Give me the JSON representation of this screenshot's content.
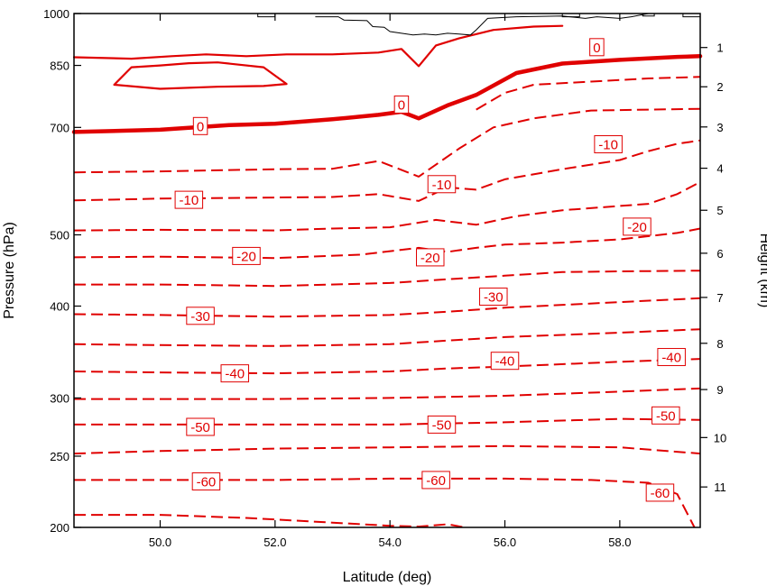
{
  "chart_data": {
    "type": "contour",
    "title": "",
    "xlabel": "Latitude (deg)",
    "ylabel_left": "Pressure (hPa)",
    "ylabel_right": "Height (km)",
    "xlim": [
      48.5,
      59.4
    ],
    "ylim_pressure": [
      1000,
      200
    ],
    "y_scale": "log-pressure",
    "x_ticks": [
      {
        "value": 50.0,
        "label": "50.0"
      },
      {
        "value": 52.0,
        "label": "52.0"
      },
      {
        "value": 54.0,
        "label": "54.0"
      },
      {
        "value": 56.0,
        "label": "56.0"
      },
      {
        "value": 58.0,
        "label": "58.0"
      }
    ],
    "y_ticks_left": [
      {
        "value": 200,
        "label": "200"
      },
      {
        "value": 250,
        "label": "250"
      },
      {
        "value": 300,
        "label": "300"
      },
      {
        "value": 400,
        "label": "400"
      },
      {
        "value": 500,
        "label": "500"
      },
      {
        "value": 700,
        "label": "700"
      },
      {
        "value": 850,
        "label": "850"
      },
      {
        "value": 1000,
        "label": "1000"
      }
    ],
    "y_ticks_right": [
      {
        "km": 1,
        "pressure": 899,
        "label": "1"
      },
      {
        "km": 2,
        "pressure": 795,
        "label": "2"
      },
      {
        "km": 3,
        "pressure": 701,
        "label": "3"
      },
      {
        "km": 4,
        "pressure": 616,
        "label": "4"
      },
      {
        "km": 5,
        "pressure": 540,
        "label": "5"
      },
      {
        "km": 6,
        "pressure": 472,
        "label": "6"
      },
      {
        "km": 7,
        "pressure": 411,
        "label": "7"
      },
      {
        "km": 8,
        "pressure": 356,
        "label": "8"
      },
      {
        "km": 9,
        "pressure": 308,
        "label": "9"
      },
      {
        "km": 10,
        "pressure": 265,
        "label": "10"
      },
      {
        "km": 11,
        "pressure": 227,
        "label": "11"
      }
    ],
    "contour_color": "#e00000",
    "terrain_color": "#000000",
    "contour_interval": 5,
    "negative_style": "dashed",
    "zero_style": "thick",
    "positive_style": "solid",
    "contours": [
      {
        "level": -65,
        "style": "dashed",
        "points": [
          [
            48.5,
            208
          ],
          [
            50,
            208
          ],
          [
            51.5,
            206
          ],
          [
            53,
            203
          ],
          [
            54,
            201
          ],
          [
            54.5,
            200.5
          ],
          [
            55,
            202
          ],
          [
            55.3,
            200
          ]
        ]
      },
      {
        "level": -60,
        "style": "dashed",
        "points": [
          [
            48.5,
            232
          ],
          [
            50,
            232
          ],
          [
            52,
            232
          ],
          [
            54,
            233
          ],
          [
            56,
            233
          ],
          [
            57.5,
            232
          ],
          [
            58.5,
            230
          ],
          [
            59,
            222
          ],
          [
            59.3,
            200
          ]
        ]
      },
      {
        "level": -55,
        "style": "dashed",
        "points": [
          [
            48.5,
            252
          ],
          [
            50,
            254
          ],
          [
            52,
            256
          ],
          [
            54,
            257
          ],
          [
            56,
            258
          ],
          [
            58,
            257
          ],
          [
            59.4,
            252
          ]
        ]
      },
      {
        "level": -50,
        "style": "dashed",
        "points": [
          [
            48.5,
            276
          ],
          [
            50,
            276
          ],
          [
            52,
            276
          ],
          [
            54,
            276
          ],
          [
            56,
            278
          ],
          [
            58,
            281
          ],
          [
            59.4,
            280
          ]
        ]
      },
      {
        "level": -45,
        "style": "dashed",
        "points": [
          [
            48.5,
            299
          ],
          [
            50,
            299
          ],
          [
            52,
            299
          ],
          [
            54,
            300
          ],
          [
            56,
            302
          ],
          [
            58,
            306
          ],
          [
            59.4,
            309
          ]
        ]
      },
      {
        "level": -40,
        "style": "dashed",
        "points": [
          [
            48.5,
            326
          ],
          [
            50,
            325
          ],
          [
            52,
            324
          ],
          [
            54,
            326
          ],
          [
            55,
            329
          ],
          [
            56,
            331
          ],
          [
            58,
            336
          ],
          [
            59.4,
            339
          ]
        ]
      },
      {
        "level": -35,
        "style": "dashed",
        "points": [
          [
            48.5,
            355
          ],
          [
            50,
            354
          ],
          [
            52,
            353
          ],
          [
            54,
            355
          ],
          [
            55,
            359
          ],
          [
            56,
            363
          ],
          [
            58,
            368
          ],
          [
            59.4,
            372
          ]
        ]
      },
      {
        "level": -30,
        "style": "dashed",
        "points": [
          [
            48.5,
            390
          ],
          [
            50,
            389
          ],
          [
            52,
            387
          ],
          [
            54,
            389
          ],
          [
            55,
            393
          ],
          [
            56,
            398
          ],
          [
            58,
            405
          ],
          [
            59.4,
            410
          ]
        ]
      },
      {
        "level": -25,
        "style": "dashed",
        "points": [
          [
            48.5,
            428
          ],
          [
            50,
            428
          ],
          [
            52,
            426
          ],
          [
            54,
            430
          ],
          [
            55,
            435
          ],
          [
            56,
            440
          ],
          [
            57,
            445
          ],
          [
            58,
            446
          ],
          [
            59.4,
            447
          ]
        ]
      },
      {
        "level": -20,
        "style": "dashed",
        "points": [
          [
            48.5,
            466
          ],
          [
            50,
            467
          ],
          [
            52,
            465
          ],
          [
            53.5,
            470
          ],
          [
            54.5,
            480
          ],
          [
            55,
            474
          ],
          [
            55.5,
            480
          ],
          [
            56,
            485
          ],
          [
            57,
            488
          ],
          [
            58,
            493
          ],
          [
            59,
            503
          ],
          [
            59.4,
            510
          ]
        ]
      },
      {
        "level": -15,
        "style": "dashed",
        "points": [
          [
            48.5,
            507
          ],
          [
            50,
            508
          ],
          [
            52,
            507
          ],
          [
            53,
            510
          ],
          [
            54,
            512
          ],
          [
            54.8,
            524
          ],
          [
            55.5,
            516
          ],
          [
            56.2,
            530
          ],
          [
            57,
            540
          ],
          [
            58.5,
            551
          ],
          [
            59,
            568
          ],
          [
            59.4,
            590
          ]
        ]
      },
      {
        "level": -10,
        "style": "dashed",
        "points": [
          [
            48.5,
            557
          ],
          [
            50,
            560
          ],
          [
            52,
            562
          ],
          [
            53,
            563
          ],
          [
            53.8,
            568
          ],
          [
            54.5,
            556
          ],
          [
            55,
            580
          ],
          [
            55.5,
            576
          ],
          [
            56,
            595
          ],
          [
            57,
            614
          ],
          [
            58,
            632
          ],
          [
            58.5,
            650
          ],
          [
            59,
            665
          ],
          [
            59.4,
            672
          ]
        ]
      },
      {
        "level": -5,
        "style": "dashed",
        "points": [
          [
            48.5,
            608
          ],
          [
            50,
            610
          ],
          [
            52,
            614
          ],
          [
            53,
            615
          ],
          [
            53.8,
            630
          ],
          [
            54.5,
            600
          ],
          [
            55.2,
            655
          ],
          [
            55.8,
            700
          ],
          [
            56.5,
            720
          ],
          [
            57.5,
            738
          ],
          [
            58.5,
            740
          ],
          [
            59.4,
            742
          ]
        ]
      },
      {
        "level": -2,
        "style": "dashed",
        "points": [
          [
            55.5,
            740
          ],
          [
            56,
            780
          ],
          [
            56.5,
            800
          ],
          [
            57.5,
            808
          ],
          [
            58.5,
            816
          ],
          [
            59.4,
            820
          ]
        ]
      },
      {
        "level": 0,
        "style": "thick",
        "points": [
          [
            48.5,
            690
          ],
          [
            50,
            695
          ],
          [
            51.2,
            705
          ],
          [
            52,
            708
          ],
          [
            53,
            718
          ],
          [
            53.8,
            728
          ],
          [
            54.2,
            735
          ],
          [
            54.5,
            720
          ],
          [
            55,
            750
          ],
          [
            55.5,
            775
          ],
          [
            56.2,
            830
          ],
          [
            57,
            855
          ],
          [
            58,
            865
          ],
          [
            59,
            873
          ],
          [
            59.4,
            875
          ]
        ]
      },
      {
        "level": 5,
        "style": "solid",
        "points": [
          [
            48.5,
            872
          ],
          [
            49.5,
            868
          ],
          [
            50.2,
            875
          ],
          [
            50.8,
            880
          ],
          [
            51.5,
            875
          ],
          [
            52.2,
            880
          ],
          [
            53,
            880
          ],
          [
            53.8,
            885
          ],
          [
            54.2,
            895
          ],
          [
            54.5,
            848
          ],
          [
            54.8,
            905
          ],
          [
            55.2,
            925
          ],
          [
            55.8,
            950
          ],
          [
            56.5,
            960
          ],
          [
            57,
            962
          ]
        ]
      },
      {
        "level": 5,
        "style": "solid",
        "points": [
          [
            49.2,
            800
          ],
          [
            50,
            790
          ],
          [
            51,
            795
          ],
          [
            51.8,
            797
          ],
          [
            52.2,
            802
          ],
          [
            51.8,
            845
          ],
          [
            51,
            858
          ],
          [
            50.5,
            856
          ],
          [
            50,
            850
          ],
          [
            49.5,
            845
          ],
          [
            49.2,
            800
          ]
        ]
      }
    ],
    "contour_labels": [
      {
        "text": "-60",
        "x": 50.8,
        "p": 231
      },
      {
        "text": "-60",
        "x": 54.8,
        "p": 232
      },
      {
        "text": "-60",
        "x": 58.7,
        "p": 223
      },
      {
        "text": "-50",
        "x": 50.7,
        "p": 274
      },
      {
        "text": "-50",
        "x": 54.9,
        "p": 276
      },
      {
        "text": "-50",
        "x": 58.8,
        "p": 284
      },
      {
        "text": "-40",
        "x": 51.3,
        "p": 324
      },
      {
        "text": "-40",
        "x": 56.0,
        "p": 337
      },
      {
        "text": "-40",
        "x": 58.9,
        "p": 341
      },
      {
        "text": "-30",
        "x": 50.7,
        "p": 388
      },
      {
        "text": "-30",
        "x": 55.8,
        "p": 412
      },
      {
        "text": "-20",
        "x": 51.5,
        "p": 468
      },
      {
        "text": "-20",
        "x": 54.7,
        "p": 466
      },
      {
        "text": "-20",
        "x": 58.3,
        "p": 513
      },
      {
        "text": "-10",
        "x": 50.5,
        "p": 558
      },
      {
        "text": "-10",
        "x": 54.9,
        "p": 586
      },
      {
        "text": "-10",
        "x": 57.8,
        "p": 664
      },
      {
        "text": "0",
        "x": 50.7,
        "p": 703
      },
      {
        "text": "0",
        "x": 54.2,
        "p": 752
      },
      {
        "text": "0",
        "x": 57.6,
        "p": 900
      }
    ],
    "terrain_outline": [
      [
        52.7,
        990
      ],
      [
        53.1,
        990
      ],
      [
        53.2,
        980
      ],
      [
        53.6,
        978
      ],
      [
        53.7,
        960
      ],
      [
        53.9,
        958
      ],
      [
        54.0,
        945
      ],
      [
        54.2,
        940
      ],
      [
        54.4,
        935
      ],
      [
        54.6,
        938
      ],
      [
        54.8,
        935
      ],
      [
        55.0,
        940
      ],
      [
        55.2,
        938
      ],
      [
        55.4,
        935
      ],
      [
        55.5,
        950
      ],
      [
        55.7,
        985
      ],
      [
        56.2,
        990
      ],
      [
        57.0,
        992
      ],
      [
        57.4,
        985
      ],
      [
        57.6,
        990
      ],
      [
        58.0,
        985
      ],
      [
        58.2,
        990
      ],
      [
        58.5,
        1000
      ]
    ],
    "terrain_pieces": [
      [
        [
          51.7,
          1000
        ],
        [
          51.7,
          990
        ],
        [
          52.0,
          990
        ],
        [
          52.0,
          1000
        ]
      ],
      [
        [
          57.0,
          1000
        ],
        [
          57.0,
          990
        ],
        [
          57.3,
          990
        ],
        [
          57.3,
          1000
        ]
      ],
      [
        [
          58.4,
          1000
        ],
        [
          58.4,
          992
        ],
        [
          58.6,
          992
        ],
        [
          58.6,
          1000
        ]
      ],
      [
        [
          59.1,
          1000
        ],
        [
          59.1,
          990
        ],
        [
          59.4,
          990
        ]
      ]
    ]
  }
}
